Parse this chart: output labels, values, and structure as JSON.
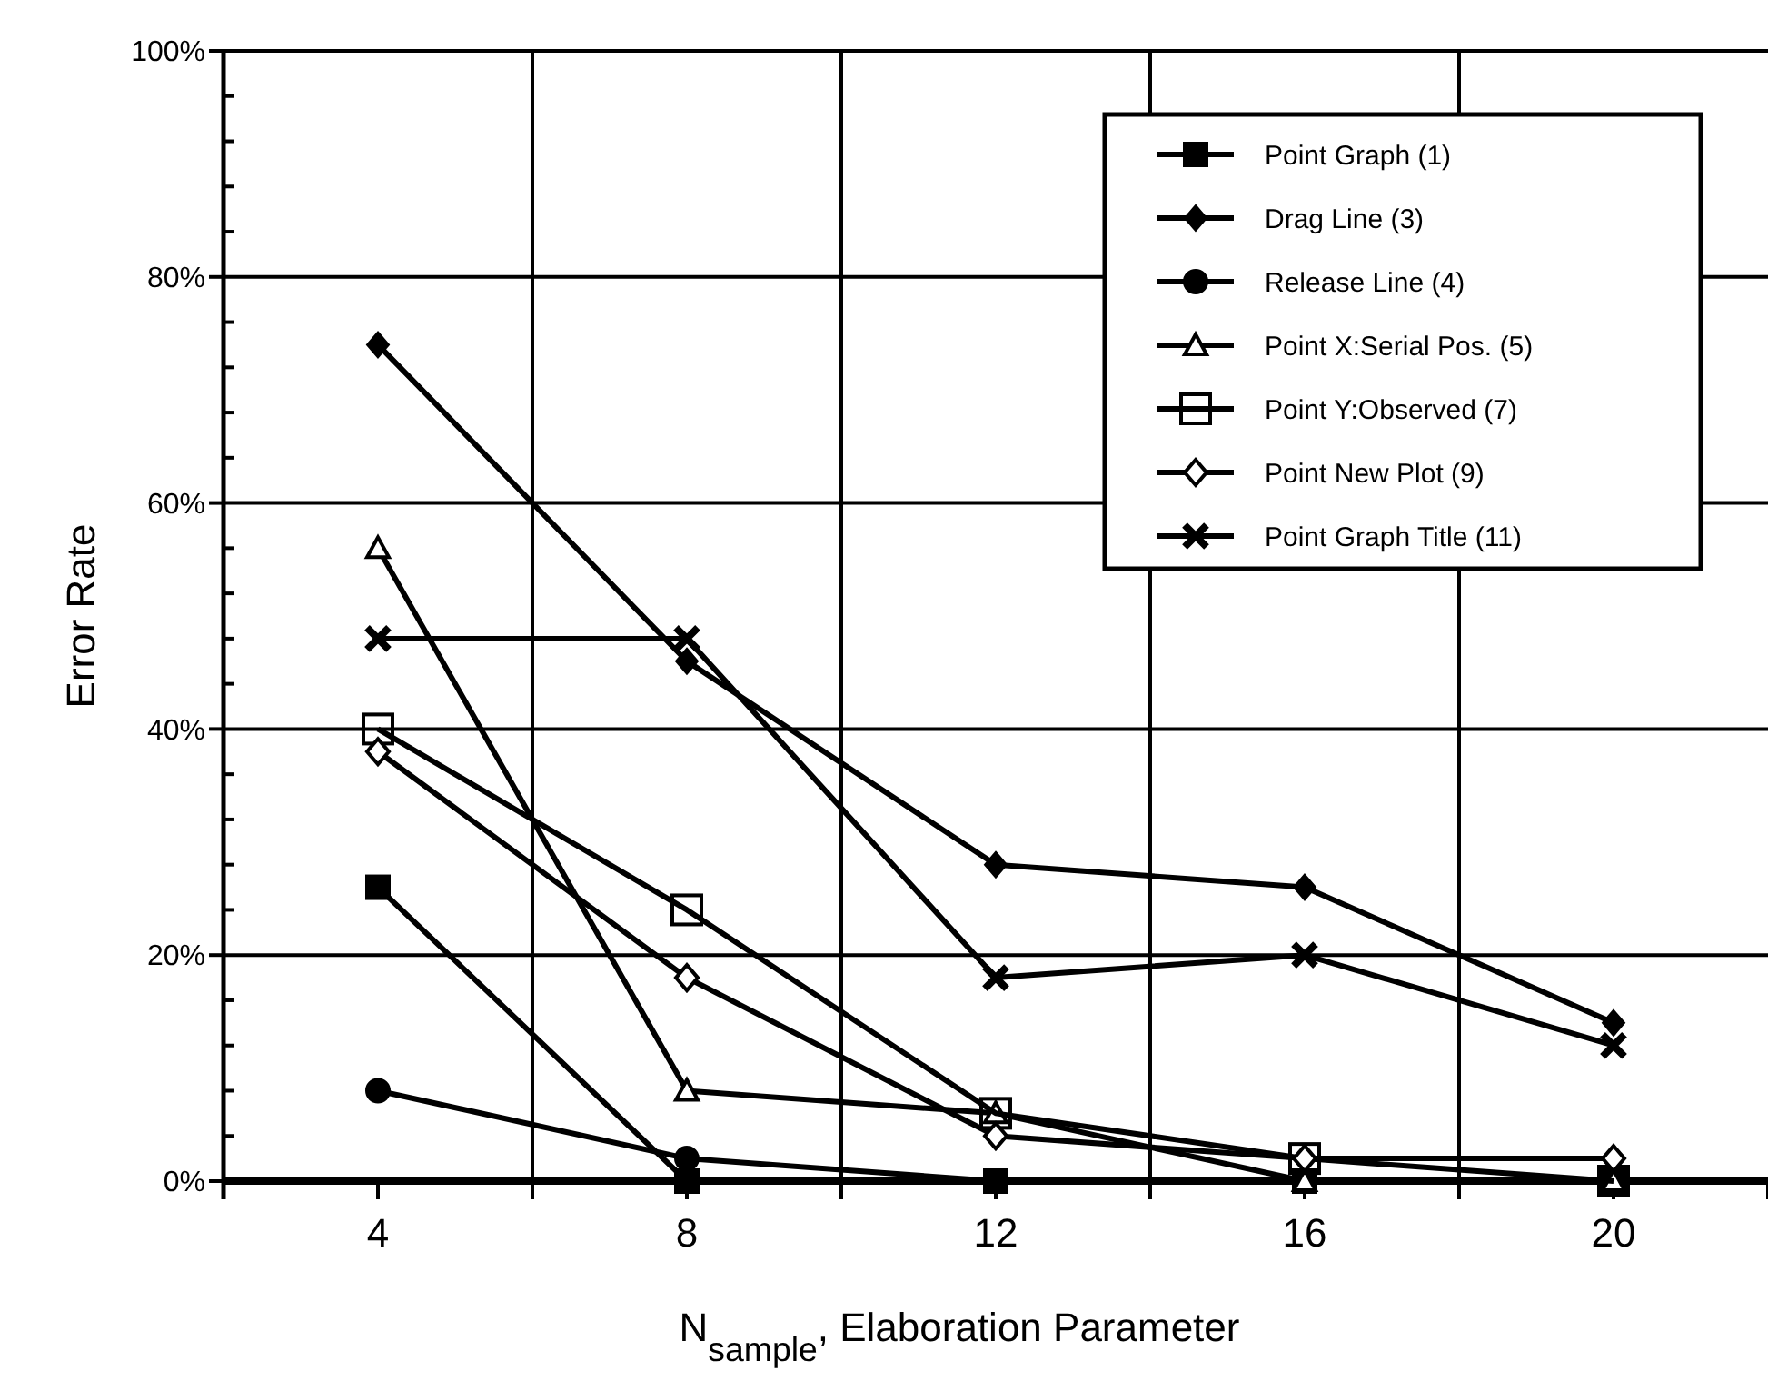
{
  "chart_data": {
    "type": "line",
    "xlabel": "N$_{sample}$, Elaboration Parameter",
    "ylabel": "Error Rate",
    "x": [
      4,
      8,
      12,
      16,
      20
    ],
    "xlim": [
      2,
      22
    ],
    "xticks": [
      {
        "value": 2,
        "label": null
      },
      4,
      {
        "value": 6,
        "label": null
      },
      8,
      {
        "value": 10,
        "label": null
      },
      12,
      {
        "value": 14,
        "label": null
      },
      16,
      {
        "value": 18,
        "label": null
      },
      20,
      {
        "value": 22,
        "label": null
      }
    ],
    "ylim": [
      0,
      100
    ],
    "yticks": [
      {
        "value": 0,
        "label": "0%"
      },
      {
        "value": 4,
        "label": null
      },
      {
        "value": 8,
        "label": null
      },
      {
        "value": 12,
        "label": null
      },
      {
        "value": 16,
        "label": null
      },
      {
        "value": 20,
        "label": "20%"
      },
      {
        "value": 24,
        "label": null
      },
      {
        "value": 28,
        "label": null
      },
      {
        "value": 32,
        "label": null
      },
      {
        "value": 36,
        "label": null
      },
      {
        "value": 40,
        "label": "40%"
      },
      {
        "value": 44,
        "label": null
      },
      {
        "value": 48,
        "label": null
      },
      {
        "value": 52,
        "label": null
      },
      {
        "value": 56,
        "label": null
      },
      {
        "value": 60,
        "label": "60%"
      },
      {
        "value": 64,
        "label": null
      },
      {
        "value": 68,
        "label": null
      },
      {
        "value": 72,
        "label": null
      },
      {
        "value": 76,
        "label": null
      },
      {
        "value": 80,
        "label": "80%"
      },
      {
        "value": 84,
        "label": null
      },
      {
        "value": 88,
        "label": null
      },
      {
        "value": 92,
        "label": null
      },
      {
        "value": 96,
        "label": null
      },
      {
        "value": 100,
        "label": "100%"
      }
    ],
    "grid": true,
    "legend": "top right",
    "series": [
      {
        "name": "Point Graph (1)",
        "color": "#000000",
        "marker": "square",
        "values": [
          26,
          0,
          0,
          0,
          0
        ]
      },
      {
        "name": "Drag Line (3)",
        "color": "#000000",
        "marker": "diamond",
        "values": [
          74,
          46,
          28,
          26,
          14
        ]
      },
      {
        "name": "Release Line (4)",
        "color": "#000000",
        "marker": "circle",
        "values": [
          8,
          2,
          0,
          0,
          0
        ]
      },
      {
        "name": "Point X:Serial Pos. (5)",
        "color": "#000000",
        "marker": "triangle",
        "values": [
          56,
          8,
          6,
          0,
          0
        ]
      },
      {
        "name": "Point Y:Observed (7)",
        "color": "#000000",
        "marker": "square-open",
        "values": [
          40,
          24,
          6,
          2,
          0
        ]
      },
      {
        "name": "Point New Plot (9)",
        "color": "#000000",
        "marker": "diamond-open",
        "values": [
          38,
          18,
          4,
          2,
          2
        ]
      },
      {
        "name": "Point Graph Title (11)",
        "color": "#000000",
        "marker": "cross",
        "values": [
          48,
          48,
          18,
          20,
          12
        ]
      }
    ]
  }
}
